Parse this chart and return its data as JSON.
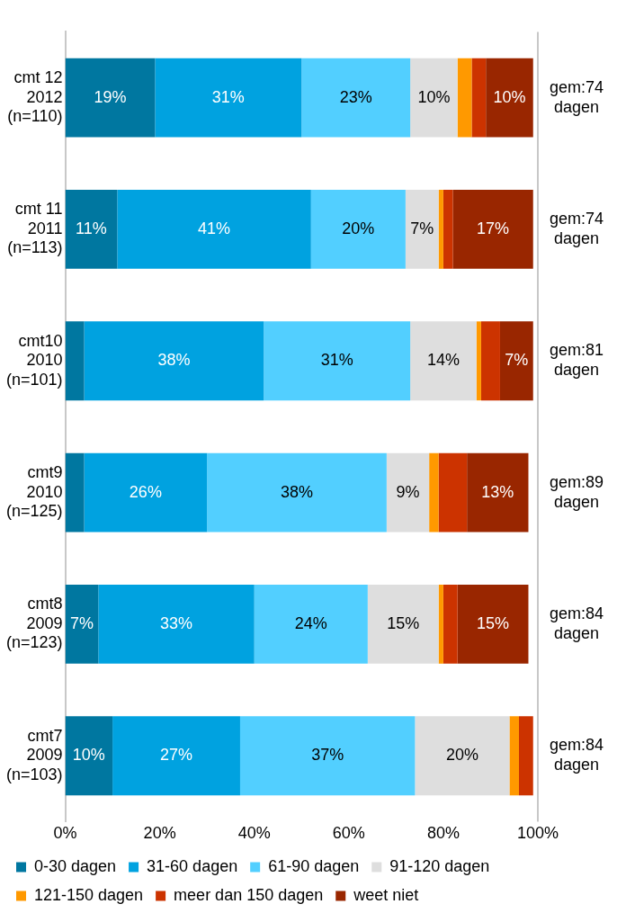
{
  "chart_data": {
    "type": "bar",
    "orientation": "horizontal",
    "stacked": true,
    "legend": "bottom",
    "grid": false,
    "categories": [
      "cmt 12\n2012\n(n=110)",
      "cmt 11\n2011\n(n=113)",
      "cmt10\n2010\n(n=101)",
      "cmt9\n2010\n(n=125)",
      "cmt8\n2009\n(n=123)",
      "cmt7\n2009\n(n=103)"
    ],
    "xlim": [
      0,
      100
    ],
    "xticks": [
      {
        "value": 0,
        "label": "0%"
      },
      {
        "value": 20,
        "label": "20%"
      },
      {
        "value": 40,
        "label": "40%"
      },
      {
        "value": 60,
        "label": "60%"
      },
      {
        "value": 80,
        "label": "80%"
      },
      {
        "value": 100,
        "label": "100%"
      }
    ],
    "series": [
      {
        "name": "0-30 dagen",
        "color": "#0077a0",
        "values": [
          19,
          11,
          4,
          4,
          7,
          10
        ],
        "value_labels": [
          "19%",
          "11%",
          null,
          null,
          "7%",
          "10%"
        ]
      },
      {
        "name": "31-60 dagen",
        "color": "#00a2e0",
        "values": [
          31,
          41,
          38,
          26,
          33,
          27
        ],
        "value_labels": [
          "31%",
          "41%",
          "38%",
          "26%",
          "33%",
          "27%"
        ]
      },
      {
        "name": "61-90 dagen",
        "color": "#52cfff",
        "values": [
          23,
          20,
          31,
          38,
          24,
          37
        ],
        "value_labels": [
          "23%",
          "20%",
          "31%",
          "38%",
          "24%",
          "37%"
        ]
      },
      {
        "name": "91-120 dagen",
        "color": "#dedede",
        "values": [
          10,
          7,
          14,
          9,
          15,
          20
        ],
        "value_labels": [
          "10%",
          "7%",
          "14%",
          "9%",
          "15%",
          "20%"
        ]
      },
      {
        "name": "121-150 dagen",
        "color": "#ff9900",
        "values": [
          3,
          1,
          1,
          2,
          1,
          2
        ],
        "value_labels": [
          null,
          null,
          null,
          null,
          null,
          null
        ]
      },
      {
        "name": "meer dan 150 dagen",
        "color": "#cc3300",
        "values": [
          3,
          2,
          4,
          6,
          3,
          3
        ],
        "value_labels": [
          null,
          null,
          null,
          null,
          null,
          null
        ]
      },
      {
        "name": "weet niet",
        "color": "#992600",
        "values": [
          10,
          17,
          7,
          13,
          15,
          0
        ],
        "value_labels": [
          "10%",
          "17%",
          "7%",
          "13%",
          "15%",
          null
        ]
      }
    ],
    "annotations": [
      "gem:74\ndagen",
      "gem:74\ndagen",
      "gem:81\ndagen",
      "gem:89\ndagen",
      "gem:84\ndagen",
      "gem:84\ndagen"
    ]
  }
}
